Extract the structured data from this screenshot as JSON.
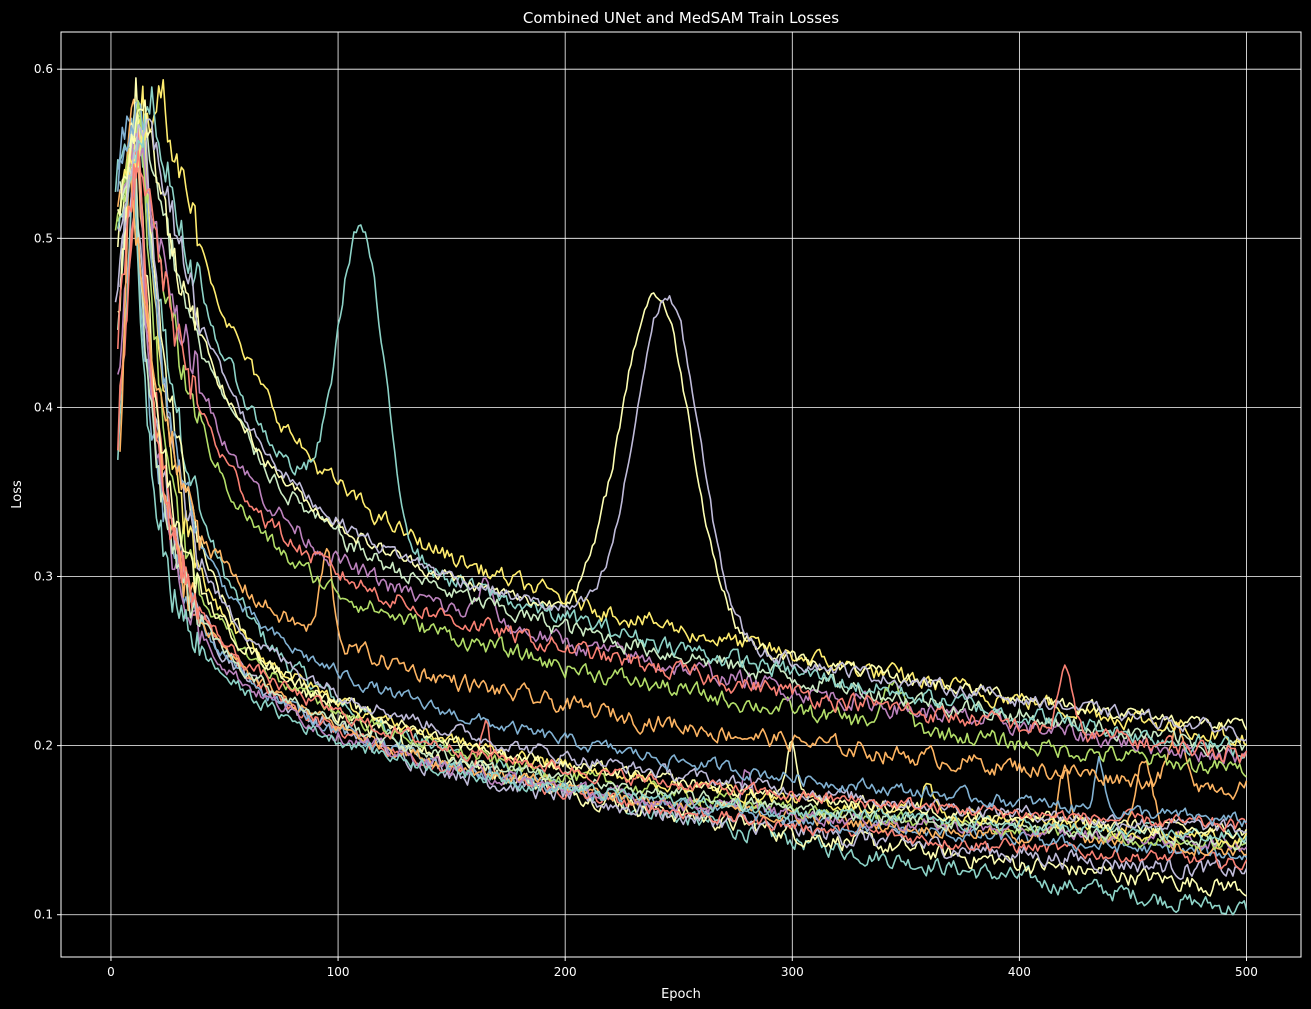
{
  "chart_data": {
    "type": "line",
    "title": "Combined UNet and MedSAM Train Losses",
    "xlabel": "Epoch",
    "ylabel": "Loss",
    "xlim": [
      -22,
      524
    ],
    "ylim": [
      0.075,
      0.622
    ],
    "xticks": [
      0,
      100,
      200,
      300,
      400,
      500
    ],
    "yticks": [
      0.1,
      0.2,
      0.3,
      0.4,
      0.5,
      0.6
    ],
    "grid": true,
    "legend": "none",
    "colors": [
      "#8dd3c7",
      "#feffb3",
      "#bfbbd9",
      "#fa8174",
      "#81b1d2",
      "#fdb462",
      "#b3de69",
      "#bc82bd",
      "#ccebc4",
      "#ffed6f"
    ],
    "series": [
      {
        "start_x": 2,
        "start_y": 0.53,
        "peak_x": 12,
        "peak_y": 0.575,
        "end_y": 0.103,
        "tau": 55,
        "noise": 0.004,
        "spikes": []
      },
      {
        "start_x": 3,
        "start_y": 0.5,
        "peak_x": 14,
        "peak_y": 0.57,
        "end_y": 0.116,
        "tau": 40,
        "noise": 0.004,
        "spikes": []
      },
      {
        "start_x": 4,
        "start_y": 0.47,
        "peak_x": 10,
        "peak_y": 0.56,
        "end_y": 0.125,
        "tau": 30,
        "noise": 0.004,
        "spikes": []
      },
      {
        "start_x": 4,
        "start_y": 0.4,
        "peak_x": 12,
        "peak_y": 0.55,
        "end_y": 0.13,
        "tau": 28,
        "noise": 0.003,
        "spikes": [
          [
            165,
            0.03,
            3
          ]
        ]
      },
      {
        "start_x": 3,
        "start_y": 0.55,
        "peak_x": 9,
        "peak_y": 0.575,
        "end_y": 0.135,
        "tau": 24,
        "noise": 0.003,
        "spikes": []
      },
      {
        "start_x": 3,
        "start_y": 0.52,
        "peak_x": 11,
        "peak_y": 0.585,
        "end_y": 0.138,
        "tau": 22,
        "noise": 0.003,
        "spikes": [
          [
            420,
            0.04,
            4
          ],
          [
            455,
            0.05,
            6
          ]
        ]
      },
      {
        "start_x": 2,
        "start_y": 0.5,
        "peak_x": 13,
        "peak_y": 0.58,
        "end_y": 0.14,
        "tau": 26,
        "noise": 0.003,
        "spikes": []
      },
      {
        "start_x": 3,
        "start_y": 0.42,
        "peak_x": 12,
        "peak_y": 0.56,
        "end_y": 0.142,
        "tau": 20,
        "noise": 0.003,
        "spikes": [
          [
            280,
            0.025,
            3
          ]
        ]
      },
      {
        "start_x": 3,
        "start_y": 0.45,
        "peak_x": 10,
        "peak_y": 0.57,
        "end_y": 0.143,
        "tau": 23,
        "noise": 0.003,
        "spikes": []
      },
      {
        "start_x": 4,
        "start_y": 0.52,
        "peak_x": 14,
        "peak_y": 0.58,
        "end_y": 0.145,
        "tau": 27,
        "noise": 0.003,
        "spikes": [
          [
            360,
            0.02,
            3
          ]
        ]
      },
      {
        "start_x": 3,
        "start_y": 0.36,
        "peak_x": 10,
        "peak_y": 0.55,
        "end_y": 0.146,
        "tau": 18,
        "noise": 0.003,
        "spikes": []
      },
      {
        "start_x": 3,
        "start_y": 0.45,
        "peak_x": 11,
        "peak_y": 0.59,
        "end_y": 0.148,
        "tau": 25,
        "noise": 0.003,
        "spikes": [
          [
            300,
            0.03,
            3
          ]
        ]
      },
      {
        "start_x": 2,
        "start_y": 0.47,
        "peak_x": 15,
        "peak_y": 0.57,
        "end_y": 0.15,
        "tau": 29,
        "noise": 0.003,
        "spikes": []
      },
      {
        "start_x": 3,
        "start_y": 0.38,
        "peak_x": 12,
        "peak_y": 0.56,
        "end_y": 0.152,
        "tau": 22,
        "noise": 0.003,
        "spikes": []
      },
      {
        "start_x": 3,
        "start_y": 0.54,
        "peak_x": 13,
        "peak_y": 0.58,
        "end_y": 0.155,
        "tau": 33,
        "noise": 0.003,
        "spikes": [
          [
            435,
            0.03,
            3
          ]
        ]
      },
      {
        "start_x": 4,
        "start_y": 0.37,
        "peak_x": 8,
        "peak_y": 0.54,
        "end_y": 0.175,
        "tau": 45,
        "noise": 0.004,
        "spikes": [
          [
            95,
            0.05,
            4
          ],
          [
            470,
            0.03,
            5
          ]
        ]
      },
      {
        "start_x": 3,
        "start_y": 0.5,
        "peak_x": 12,
        "peak_y": 0.575,
        "end_y": 0.185,
        "tau": 60,
        "noise": 0.004,
        "spikes": [
          [
            345,
            0.025,
            6
          ]
        ]
      },
      {
        "start_x": 4,
        "start_y": 0.52,
        "peak_x": 11,
        "peak_y": 0.57,
        "end_y": 0.193,
        "tau": 80,
        "noise": 0.004,
        "spikes": [
          [
            165,
            0.02,
            5
          ]
        ]
      },
      {
        "start_x": 4,
        "start_y": 0.53,
        "peak_x": 15,
        "peak_y": 0.56,
        "end_y": 0.198,
        "tau": 95,
        "noise": 0.004,
        "spikes": []
      },
      {
        "start_x": 5,
        "start_y": 0.53,
        "peak_x": 22,
        "peak_y": 0.59,
        "end_y": 0.205,
        "tau": 105,
        "noise": 0.004,
        "spikes": []
      },
      {
        "start_x": 3,
        "start_y": 0.5,
        "peak_x": 18,
        "peak_y": 0.58,
        "end_y": 0.197,
        "tau": 100,
        "noise": 0.004,
        "spikes": [
          [
            110,
            0.18,
            14
          ]
        ]
      },
      {
        "start_x": 3,
        "start_y": 0.52,
        "peak_x": 14,
        "peak_y": 0.58,
        "end_y": 0.21,
        "tau": 85,
        "noise": 0.003,
        "spikes": [
          [
            240,
            0.2,
            22
          ]
        ]
      },
      {
        "start_x": 3,
        "start_y": 0.5,
        "peak_x": 16,
        "peak_y": 0.58,
        "end_y": 0.208,
        "tau": 88,
        "noise": 0.003,
        "spikes": [
          [
            245,
            0.2,
            20
          ]
        ]
      },
      {
        "start_x": 3,
        "start_y": 0.44,
        "peak_x": 12,
        "peak_y": 0.56,
        "end_y": 0.195,
        "tau": 70,
        "noise": 0.004,
        "spikes": [
          [
            420,
            0.04,
            4
          ]
        ]
      }
    ]
  }
}
